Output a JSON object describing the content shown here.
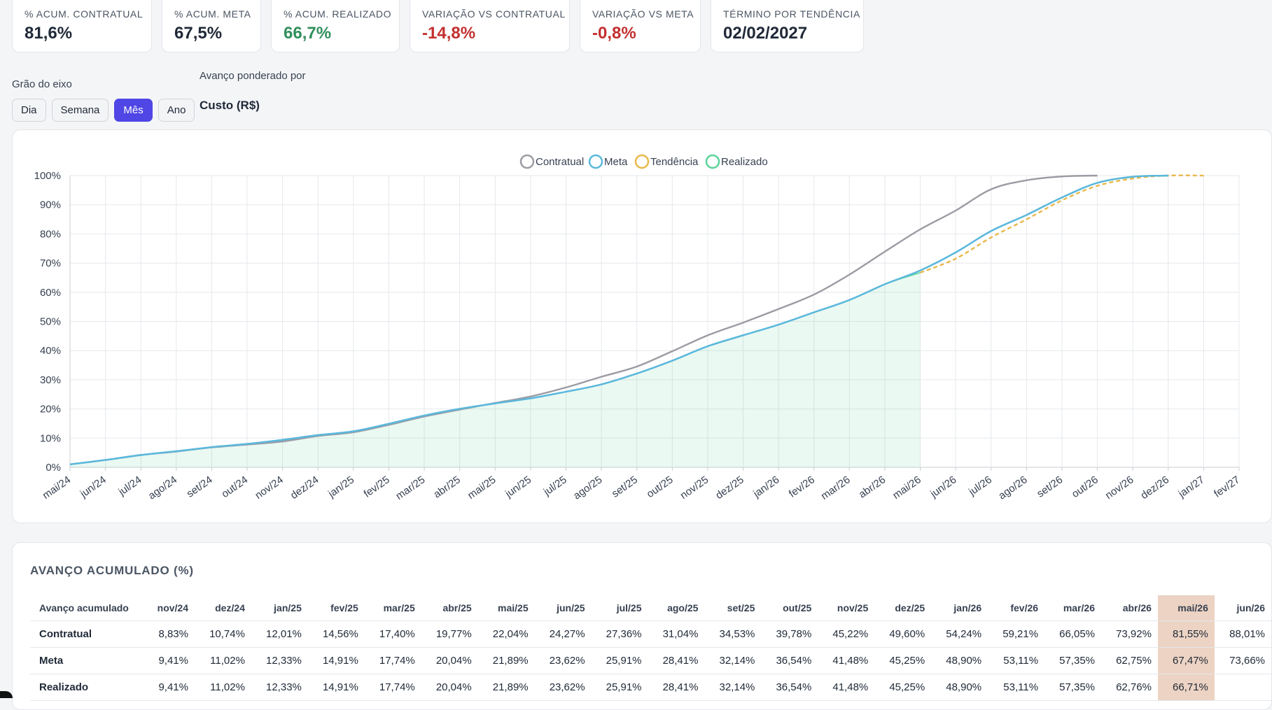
{
  "kpis": [
    {
      "label": "% ACUM. CONTRATUAL",
      "value": "81,6%",
      "color": "#1f2937"
    },
    {
      "label": "% ACUM. META",
      "value": "67,5%",
      "color": "#1f2937"
    },
    {
      "label": "% ACUM. REALIZADO",
      "value": "66,7%",
      "color": "#2f8f5b"
    },
    {
      "label": "VARIAÇÃO VS CONTRATUAL",
      "value": "-14,8%",
      "color": "#c2302f"
    },
    {
      "label": "VARIAÇÃO VS META",
      "value": "-0,8%",
      "color": "#c2302f"
    },
    {
      "label": "TÉRMINO POR TENDÊNCIA",
      "value": "02/02/2027",
      "color": "#1f2937"
    }
  ],
  "controls": {
    "axis_grain_label": "Grão do eixo",
    "grain_options": [
      "Dia",
      "Semana",
      "Mês",
      "Ano"
    ],
    "grain_selected": "Mês",
    "weighted_label": "Avanço ponderado por",
    "weighted_value": "Custo (R$)"
  },
  "chart_data": {
    "type": "line",
    "x": [
      "mai/24",
      "jun/24",
      "jul/24",
      "ago/24",
      "set/24",
      "out/24",
      "nov/24",
      "dez/24",
      "jan/25",
      "fev/25",
      "mar/25",
      "abr/25",
      "mai/25",
      "jun/25",
      "jul/25",
      "ago/25",
      "set/25",
      "out/25",
      "nov/25",
      "dez/25",
      "jan/26",
      "fev/26",
      "mar/26",
      "abr/26",
      "mai/26",
      "jun/26",
      "jul/26",
      "ago/26",
      "set/26",
      "out/26",
      "nov/26",
      "dez/26",
      "jan/27",
      "fev/27"
    ],
    "yticks": [
      "0%",
      "10%",
      "20%",
      "30%",
      "40%",
      "50%",
      "60%",
      "70%",
      "80%",
      "90%",
      "100%"
    ],
    "ylim": [
      0,
      100
    ],
    "grid": true,
    "legend_position": "top-center",
    "series": [
      {
        "name": "Contratual",
        "color": "#9b9ba3",
        "dashed": false,
        "fill": false,
        "values": [
          1.0,
          2.5,
          4.2,
          5.4,
          6.8,
          7.8,
          8.83,
          10.74,
          12.01,
          14.56,
          17.4,
          19.77,
          22.04,
          24.27,
          27.36,
          31.04,
          34.53,
          39.78,
          45.22,
          49.6,
          54.24,
          59.21,
          66.05,
          73.92,
          81.55,
          88.01,
          95.3,
          98.4,
          99.7,
          100,
          null,
          null,
          null,
          null
        ]
      },
      {
        "name": "Meta",
        "color": "#5bb8dc",
        "dashed": false,
        "fill": false,
        "values": [
          1.0,
          2.5,
          4.2,
          5.5,
          6.9,
          8.0,
          9.41,
          11.02,
          12.33,
          14.91,
          17.74,
          20.04,
          21.89,
          23.62,
          25.91,
          28.41,
          32.14,
          36.54,
          41.48,
          45.25,
          48.9,
          53.11,
          57.35,
          62.75,
          67.47,
          73.66,
          81.0,
          86.5,
          92.5,
          97.5,
          99.6,
          100,
          null,
          null
        ]
      },
      {
        "name": "Tendência",
        "color": "#e8b84a",
        "dashed": true,
        "fill": false,
        "values": [
          null,
          null,
          null,
          null,
          null,
          null,
          null,
          null,
          null,
          null,
          null,
          null,
          null,
          null,
          null,
          null,
          null,
          null,
          null,
          null,
          null,
          null,
          null,
          null,
          66.71,
          71.5,
          78.8,
          85.0,
          91.5,
          96.5,
          99.0,
          100,
          100,
          null
        ]
      },
      {
        "name": "Realizado",
        "color": "#5bd39a",
        "dashed": false,
        "fill": true,
        "values": [
          1.0,
          2.5,
          4.2,
          5.5,
          6.9,
          8.0,
          9.41,
          11.02,
          12.33,
          14.91,
          17.74,
          20.04,
          21.89,
          23.62,
          25.91,
          28.41,
          32.14,
          36.54,
          41.48,
          45.25,
          48.9,
          53.11,
          57.35,
          62.76,
          66.71,
          null,
          null,
          null,
          null,
          null,
          null,
          null,
          null,
          null
        ]
      }
    ]
  },
  "table": {
    "title": "AVANÇO ACUMULADO (%)",
    "header_label": "Avanço acumulado",
    "columns": [
      "nov/24",
      "dez/24",
      "jan/25",
      "fev/25",
      "mar/25",
      "abr/25",
      "mai/25",
      "jun/25",
      "jul/25",
      "ago/25",
      "set/25",
      "out/25",
      "nov/25",
      "dez/25",
      "jan/26",
      "fev/26",
      "mar/26",
      "abr/26",
      "mai/26",
      "jun/26"
    ],
    "highlight_column": "mai/26",
    "rows": [
      {
        "label": "Contratual",
        "values": [
          "8,83%",
          "10,74%",
          "12,01%",
          "14,56%",
          "17,40%",
          "19,77%",
          "22,04%",
          "24,27%",
          "27,36%",
          "31,04%",
          "34,53%",
          "39,78%",
          "45,22%",
          "49,60%",
          "54,24%",
          "59,21%",
          "66,05%",
          "73,92%",
          "81,55%",
          "88,01%"
        ]
      },
      {
        "label": "Meta",
        "values": [
          "9,41%",
          "11,02%",
          "12,33%",
          "14,91%",
          "17,74%",
          "20,04%",
          "21,89%",
          "23,62%",
          "25,91%",
          "28,41%",
          "32,14%",
          "36,54%",
          "41,48%",
          "45,25%",
          "48,90%",
          "53,11%",
          "57,35%",
          "62,75%",
          "67,47%",
          "73,66%"
        ]
      },
      {
        "label": "Realizado",
        "values": [
          "9,41%",
          "11,02%",
          "12,33%",
          "14,91%",
          "17,74%",
          "20,04%",
          "21,89%",
          "23,62%",
          "25,91%",
          "28,41%",
          "32,14%",
          "36,54%",
          "41,48%",
          "45,25%",
          "48,90%",
          "53,11%",
          "57,35%",
          "62,76%",
          "66,71%",
          ""
        ]
      }
    ]
  }
}
